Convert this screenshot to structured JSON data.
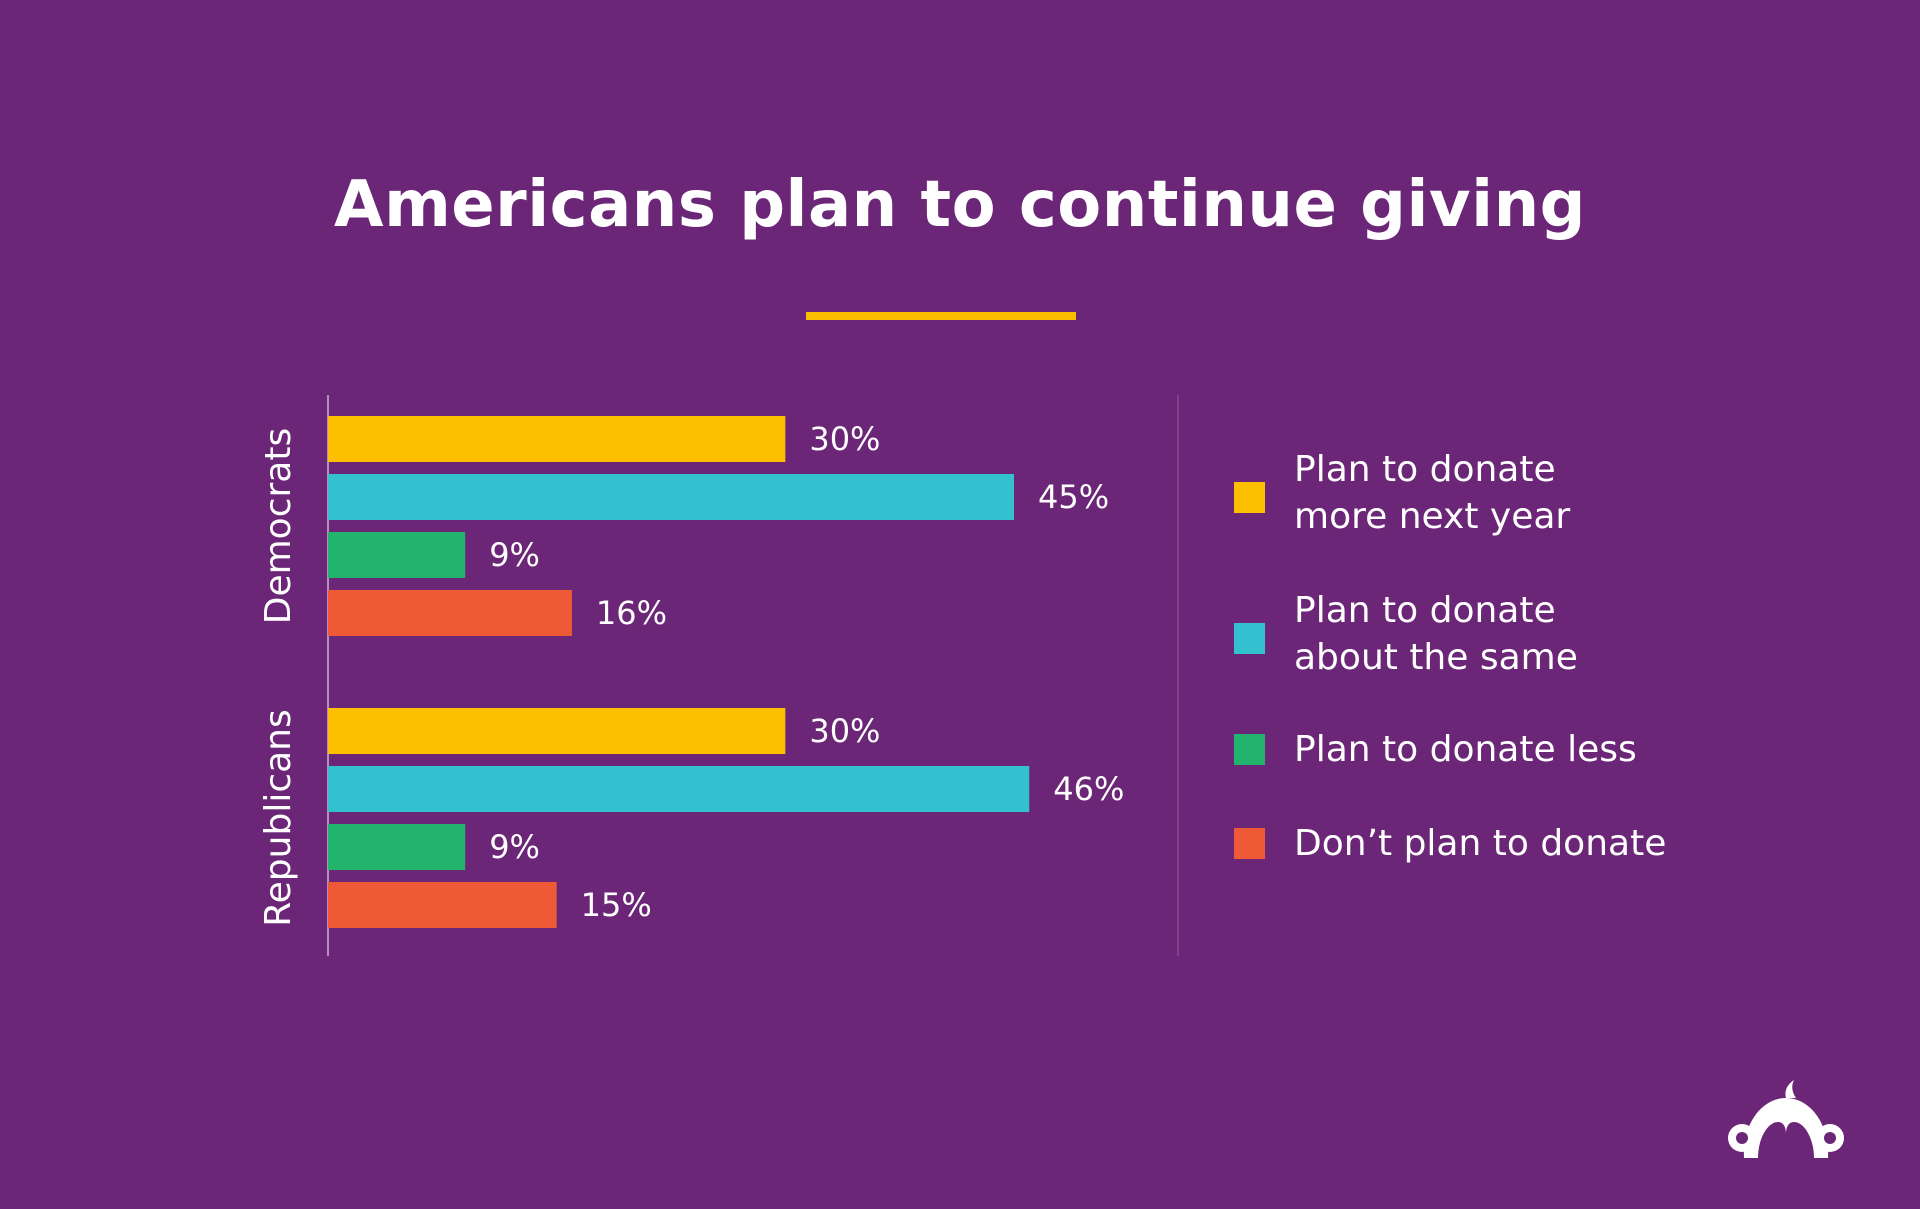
{
  "title": "Americans plan to continue giving",
  "colors": {
    "background": "#6b2677",
    "accent_rule": "#f9be00",
    "more": "#fdc000",
    "same": "#33c1d0",
    "less": "#22b46d",
    "none": "#ee5936"
  },
  "legend": [
    {
      "label": "Plan to donate\nmore next year",
      "color": "#fdc000"
    },
    {
      "label": "Plan to donate\nabout the same",
      "color": "#33c1d0"
    },
    {
      "label": "Plan to donate less",
      "color": "#22b46d"
    },
    {
      "label": "Don’t plan to donate",
      "color": "#ee5936"
    }
  ],
  "chart_data": {
    "type": "bar",
    "orientation": "horizontal",
    "title": "Americans plan to continue giving",
    "groups": [
      "Democrats",
      "Republicans"
    ],
    "series": [
      {
        "name": "Plan to donate more next year",
        "color": "#fdc000",
        "values": [
          30,
          30
        ]
      },
      {
        "name": "Plan to donate about the same",
        "color": "#33c1d0",
        "values": [
          45,
          46
        ]
      },
      {
        "name": "Plan to donate less",
        "color": "#22b46d",
        "values": [
          9,
          9
        ]
      },
      {
        "name": "Don’t plan to donate",
        "color": "#ee5936",
        "values": [
          16,
          15
        ]
      }
    ],
    "unit": "%",
    "xlim": [
      0,
      50
    ],
    "legend_position": "right",
    "grid": false
  },
  "logo": {
    "icon": "surveymonkey-logo-icon"
  }
}
